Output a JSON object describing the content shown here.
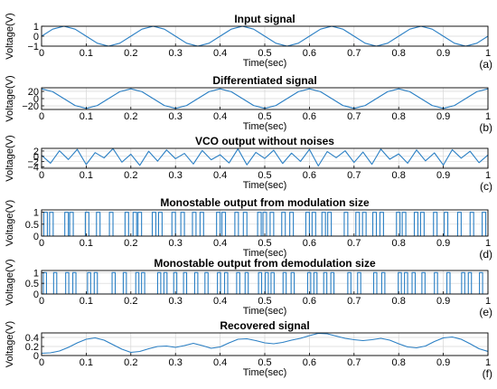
{
  "chart_data": [
    {
      "type": "line",
      "title": "Input signal",
      "xlabel": "Time(sec)",
      "ylabel": "Voltage(V)",
      "panel_tag": "(a)",
      "xlim": [
        0,
        1
      ],
      "ylim": [
        -1,
        1
      ],
      "xticks": [
        0,
        0.1,
        0.2,
        0.3,
        0.4,
        0.5,
        0.6,
        0.7,
        0.8,
        0.9,
        1
      ],
      "xtick_labels": [
        "0",
        "0.1",
        "0.2",
        "0.3",
        "0.4",
        "0.5",
        "0.6",
        "0.7",
        "0.8",
        "0.9",
        "1"
      ],
      "yticks": [
        -1,
        0,
        1
      ],
      "ytick_labels": [
        "−1",
        "0",
        "1"
      ],
      "grid": true,
      "series": [
        {
          "x": [
            0,
            0.025,
            0.05,
            0.075,
            0.1,
            0.125,
            0.15,
            0.175,
            0.2,
            0.225,
            0.25,
            0.275,
            0.3,
            0.325,
            0.35,
            0.375,
            0.4,
            0.425,
            0.45,
            0.475,
            0.5,
            0.525,
            0.55,
            0.575,
            0.6,
            0.625,
            0.65,
            0.675,
            0.7,
            0.725,
            0.75,
            0.775,
            0.8,
            0.825,
            0.85,
            0.875,
            0.9,
            0.925,
            0.95,
            0.975,
            1
          ],
          "y": [
            0,
            0.71,
            1,
            0.71,
            0,
            -0.71,
            -1,
            -0.71,
            0,
            0.71,
            1,
            0.71,
            0,
            -0.71,
            -1,
            -0.71,
            0,
            0.71,
            1,
            0.71,
            0,
            -0.71,
            -1,
            -0.71,
            0,
            0.71,
            1,
            0.71,
            0,
            -0.71,
            -1,
            -0.71,
            0,
            0.71,
            1,
            0.71,
            0,
            -0.71,
            -1,
            -0.71,
            0
          ]
        }
      ]
    },
    {
      "type": "line",
      "title": "Differentiated signal",
      "xlabel": "Time(sec)",
      "ylabel": "Voltage(V)",
      "panel_tag": "(b)",
      "xlim": [
        0,
        1
      ],
      "ylim": [
        -30,
        30
      ],
      "xticks": [
        0,
        0.1,
        0.2,
        0.3,
        0.4,
        0.5,
        0.6,
        0.7,
        0.8,
        0.9,
        1
      ],
      "xtick_labels": [
        "0",
        "0.1",
        "0.2",
        "0.3",
        "0.4",
        "0.5",
        "0.6",
        "0.7",
        "0.8",
        "0.9",
        "1"
      ],
      "yticks": [
        -20,
        0,
        20
      ],
      "ytick_labels": [
        "−20",
        "0",
        "20"
      ],
      "grid": true,
      "series": [
        {
          "x": [
            0,
            0.025,
            0.05,
            0.075,
            0.1,
            0.125,
            0.15,
            0.175,
            0.2,
            0.225,
            0.25,
            0.275,
            0.3,
            0.325,
            0.35,
            0.375,
            0.4,
            0.425,
            0.45,
            0.475,
            0.5,
            0.525,
            0.55,
            0.575,
            0.6,
            0.625,
            0.65,
            0.675,
            0.7,
            0.725,
            0.75,
            0.775,
            0.8,
            0.825,
            0.85,
            0.875,
            0.9,
            0.925,
            0.95,
            0.975,
            1
          ],
          "y": [
            27,
            19,
            0,
            -19,
            -27,
            -19,
            0,
            19,
            27,
            19,
            0,
            -19,
            -27,
            -19,
            0,
            19,
            27,
            19,
            0,
            -19,
            -27,
            -19,
            0,
            19,
            27,
            19,
            0,
            -19,
            -27,
            -19,
            0,
            19,
            27,
            19,
            0,
            -19,
            -27,
            -19,
            0,
            19,
            27
          ]
        }
      ]
    },
    {
      "type": "line",
      "title": "VCO output without noises",
      "xlabel": "Time(sec)",
      "ylabel": "Voltage(V)",
      "panel_tag": "(c)",
      "xlim": [
        0,
        1
      ],
      "ylim": [
        -4.5,
        3
      ],
      "xticks": [
        0,
        0.1,
        0.2,
        0.3,
        0.4,
        0.5,
        0.6,
        0.7,
        0.8,
        0.9,
        1
      ],
      "xtick_labels": [
        "0",
        "0.1",
        "0.2",
        "0.3",
        "0.4",
        "0.5",
        "0.6",
        "0.7",
        "0.8",
        "0.9",
        "1"
      ],
      "yticks": [
        -4,
        -2,
        0,
        2
      ],
      "ytick_labels": [
        "−4",
        "−2",
        "0",
        "2"
      ],
      "grid": true,
      "series": [
        {
          "x": [
            0,
            0.02,
            0.04,
            0.06,
            0.08,
            0.1,
            0.12,
            0.14,
            0.16,
            0.18,
            0.2,
            0.22,
            0.24,
            0.26,
            0.28,
            0.3,
            0.32,
            0.34,
            0.36,
            0.38,
            0.4,
            0.42,
            0.44,
            0.46,
            0.48,
            0.5,
            0.52,
            0.54,
            0.56,
            0.58,
            0.6,
            0.62,
            0.64,
            0.66,
            0.68,
            0.7,
            0.72,
            0.74,
            0.76,
            0.78,
            0.8,
            0.82,
            0.84,
            0.86,
            0.88,
            0.9,
            0.92,
            0.94,
            0.96,
            0.98,
            1
          ],
          "y": [
            0.4,
            -2.6,
            2.1,
            -1.2,
            2.6,
            -3.1,
            1.4,
            -0.6,
            2.9,
            -2.2,
            0.8,
            -3.4,
            1.9,
            -1.8,
            2.4,
            -0.9,
            1.1,
            -2.9,
            2.2,
            -1.3,
            0.6,
            -2.5,
            2.8,
            -3.2,
            1.5,
            -0.8,
            2.3,
            -2.7,
            1.2,
            -1.9,
            2.6,
            -3.6,
            1.8,
            -0.5,
            2.1,
            -2.3,
            1.6,
            -3,
            2.7,
            -1.1,
            0.9,
            -2.6,
            2.4,
            -1.7,
            1.3,
            -3.3,
            2.5,
            -0.7,
            1.9,
            -2.4,
            0.5
          ]
        }
      ]
    },
    {
      "type": "line",
      "title": "Monostable output from modulation size",
      "xlabel": "Time(sec)",
      "ylabel": "Voltage(V)",
      "panel_tag": "(d)",
      "xlim": [
        0,
        1
      ],
      "ylim": [
        0,
        1.1
      ],
      "xticks": [
        0,
        0.1,
        0.2,
        0.3,
        0.4,
        0.5,
        0.6,
        0.7,
        0.8,
        0.9,
        1
      ],
      "xtick_labels": [
        "0",
        "0.1",
        "0.2",
        "0.3",
        "0.4",
        "0.5",
        "0.6",
        "0.7",
        "0.8",
        "0.9",
        "1"
      ],
      "yticks": [
        0,
        0.5,
        1
      ],
      "ytick_labels": [
        "0",
        "0.5",
        "1"
      ],
      "grid": true,
      "pulse_width": 0.008,
      "pulse_starts": [
        0.005,
        0.018,
        0.052,
        0.063,
        0.098,
        0.123,
        0.152,
        0.187,
        0.205,
        0.216,
        0.248,
        0.262,
        0.292,
        0.312,
        0.338,
        0.355,
        0.392,
        0.404,
        0.433,
        0.452,
        0.484,
        0.496,
        0.512,
        0.538,
        0.556,
        0.592,
        0.606,
        0.628,
        0.641,
        0.678,
        0.704,
        0.719,
        0.742,
        0.758,
        0.795,
        0.808,
        0.835,
        0.849,
        0.878,
        0.902,
        0.932,
        0.96,
        0.987
      ]
    },
    {
      "type": "line",
      "title": "Monostable output from demodulation size",
      "xlabel": "Time(sec)",
      "ylabel": "Voltage(V)",
      "panel_tag": "(e)",
      "xlim": [
        0,
        1
      ],
      "ylim": [
        0,
        1.1
      ],
      "xticks": [
        0,
        0.1,
        0.2,
        0.3,
        0.4,
        0.5,
        0.6,
        0.7,
        0.8,
        0.9,
        1
      ],
      "xtick_labels": [
        "0",
        "0.1",
        "0.2",
        "0.3",
        "0.4",
        "0.5",
        "0.6",
        "0.7",
        "0.8",
        "0.9",
        "1"
      ],
      "yticks": [
        0,
        0.5,
        1
      ],
      "ytick_labels": [
        "0",
        "0.5",
        "1"
      ],
      "grid": true,
      "pulse_width": 0.007,
      "pulse_starts": [
        0.004,
        0.027,
        0.054,
        0.07,
        0.103,
        0.118,
        0.158,
        0.183,
        0.211,
        0.224,
        0.26,
        0.274,
        0.296,
        0.318,
        0.343,
        0.366,
        0.394,
        0.41,
        0.437,
        0.456,
        0.486,
        0.501,
        0.514,
        0.541,
        0.559,
        0.596,
        0.61,
        0.632,
        0.648,
        0.686,
        0.708,
        0.744,
        0.762,
        0.799,
        0.813,
        0.83,
        0.852,
        0.88,
        0.908,
        0.941,
        0.956,
        0.981
      ]
    },
    {
      "type": "line",
      "title": "Recovered signal",
      "xlabel": "Time(sec)",
      "ylabel": "Voltage(V)",
      "panel_tag": "(f)",
      "xlim": [
        0,
        1
      ],
      "ylim": [
        0,
        0.5
      ],
      "xticks": [
        0,
        0.1,
        0.2,
        0.3,
        0.4,
        0.5,
        0.6,
        0.7,
        0.8,
        0.9,
        1
      ],
      "xtick_labels": [
        "0",
        "0.1",
        "0.2",
        "0.3",
        "0.4",
        "0.5",
        "0.6",
        "0.7",
        "0.8",
        "0.9",
        "1"
      ],
      "yticks": [
        0,
        0.2,
        0.4
      ],
      "ytick_labels": [
        "0",
        "0.2",
        "0.4"
      ],
      "grid": true,
      "series": [
        {
          "x": [
            0,
            0.02,
            0.04,
            0.06,
            0.08,
            0.1,
            0.12,
            0.14,
            0.16,
            0.18,
            0.2,
            0.22,
            0.24,
            0.26,
            0.28,
            0.3,
            0.32,
            0.34,
            0.36,
            0.38,
            0.4,
            0.42,
            0.44,
            0.46,
            0.48,
            0.5,
            0.52,
            0.54,
            0.56,
            0.58,
            0.6,
            0.62,
            0.64,
            0.66,
            0.68,
            0.7,
            0.72,
            0.74,
            0.76,
            0.78,
            0.8,
            0.82,
            0.84,
            0.86,
            0.88,
            0.9,
            0.92,
            0.94,
            0.96,
            0.98,
            1
          ],
          "y": [
            0.05,
            0.06,
            0.1,
            0.18,
            0.28,
            0.36,
            0.39,
            0.34,
            0.24,
            0.14,
            0.07,
            0.09,
            0.15,
            0.2,
            0.21,
            0.18,
            0.22,
            0.27,
            0.22,
            0.16,
            0.19,
            0.28,
            0.36,
            0.37,
            0.33,
            0.28,
            0.26,
            0.29,
            0.34,
            0.38,
            0.44,
            0.49,
            0.48,
            0.43,
            0.38,
            0.35,
            0.33,
            0.35,
            0.38,
            0.34,
            0.26,
            0.19,
            0.17,
            0.21,
            0.31,
            0.39,
            0.41,
            0.36,
            0.26,
            0.15,
            0.09
          ]
        }
      ]
    }
  ]
}
